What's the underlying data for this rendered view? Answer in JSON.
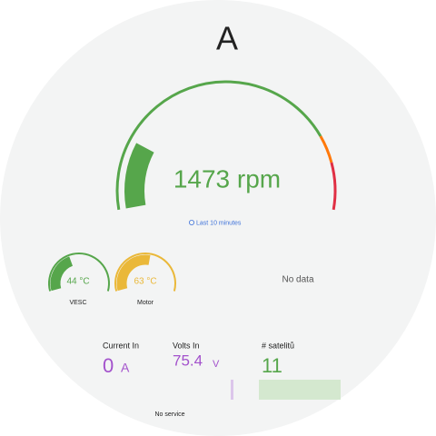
{
  "header": {
    "title": "A"
  },
  "main_gauge": {
    "text": "1473 rpm",
    "time_range": "Last 10 minutes"
  },
  "small_gauges": [
    {
      "text": "44 °C",
      "label": "VESC"
    },
    {
      "text": "63 °C",
      "label": "Motor"
    }
  ],
  "no_data": "No data",
  "stats": [
    {
      "title": "Current In",
      "value": "0",
      "unit": "A"
    },
    {
      "title": "Volts In",
      "value": "75.4",
      "unit": "V"
    },
    {
      "title": "# satelitů",
      "value": "11"
    }
  ],
  "footer": "No service"
}
